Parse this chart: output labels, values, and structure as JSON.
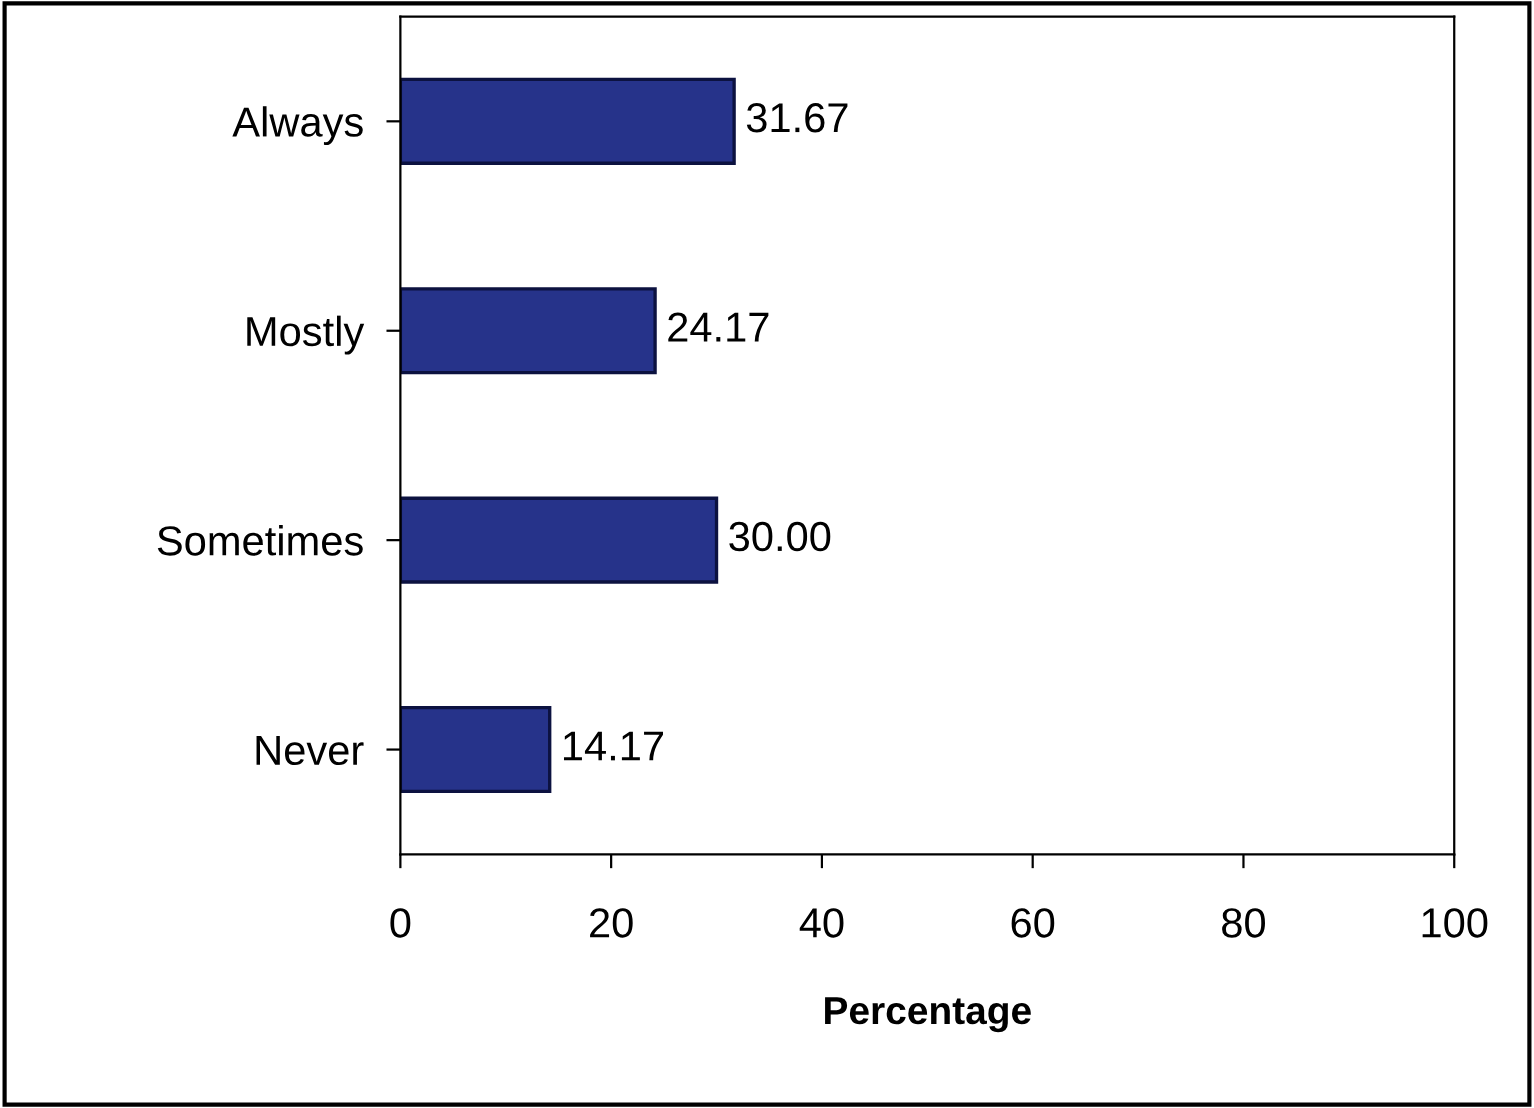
{
  "chart_data": {
    "type": "bar",
    "orientation": "horizontal",
    "categories": [
      "Always",
      "Mostly",
      "Sometimes",
      "Never"
    ],
    "values": [
      31.67,
      24.17,
      30.0,
      14.17
    ],
    "value_labels": [
      "31.67",
      "24.17",
      "30.00",
      "14.17"
    ],
    "color": "#26338a",
    "xlim": [
      0,
      100
    ],
    "xticks": [
      0,
      20,
      40,
      60,
      80,
      100
    ],
    "xlabel": "Percentage",
    "grid": false,
    "legend": false
  }
}
